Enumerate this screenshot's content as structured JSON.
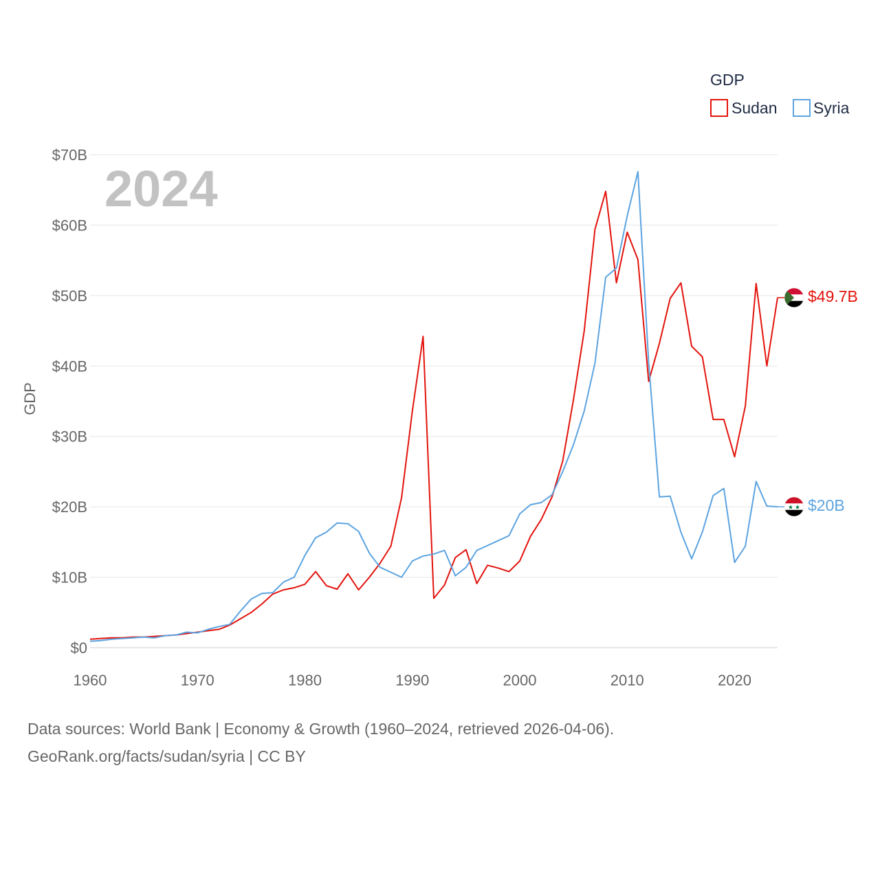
{
  "chart_data": {
    "type": "line",
    "title": "",
    "year_label": "2024",
    "xlabel": "",
    "ylabel": "GDP",
    "xlim": [
      1960,
      2024
    ],
    "ylim": [
      0,
      70
    ],
    "x_ticks": [
      1960,
      1970,
      1980,
      1990,
      2000,
      2010,
      2020
    ],
    "y_ticks": [
      {
        "value": 0,
        "label": "$0"
      },
      {
        "value": 10,
        "label": "$10B"
      },
      {
        "value": 20,
        "label": "$20B"
      },
      {
        "value": 30,
        "label": "$30B"
      },
      {
        "value": 40,
        "label": "$40B"
      },
      {
        "value": 50,
        "label": "$50B"
      },
      {
        "value": 60,
        "label": "$60B"
      },
      {
        "value": 70,
        "label": "$70B"
      }
    ],
    "legend": {
      "title": "GDP",
      "position": "top-right"
    },
    "x": [
      1960,
      1961,
      1962,
      1963,
      1964,
      1965,
      1966,
      1967,
      1968,
      1969,
      1970,
      1971,
      1972,
      1973,
      1974,
      1975,
      1976,
      1977,
      1978,
      1979,
      1980,
      1981,
      1982,
      1983,
      1984,
      1985,
      1986,
      1987,
      1988,
      1989,
      1990,
      1991,
      1992,
      1993,
      1994,
      1995,
      1996,
      1997,
      1998,
      1999,
      2000,
      2001,
      2002,
      2003,
      2004,
      2005,
      2006,
      2007,
      2008,
      2009,
      2010,
      2011,
      2012,
      2013,
      2014,
      2015,
      2016,
      2017,
      2018,
      2019,
      2020,
      2021,
      2022,
      2023,
      2024
    ],
    "series": [
      {
        "name": "Sudan",
        "color": "#e3120b",
        "end_label": "$49.7B",
        "flag": "sudan-flag",
        "values": [
          1.2,
          1.3,
          1.4,
          1.4,
          1.5,
          1.5,
          1.6,
          1.7,
          1.8,
          2.0,
          2.2,
          2.4,
          2.6,
          3.2,
          4.1,
          5.0,
          6.2,
          7.6,
          8.2,
          8.5,
          9.0,
          10.8,
          8.8,
          8.3,
          10.5,
          8.2,
          10.0,
          12.0,
          14.4,
          21.3,
          33.6,
          44.2,
          7.0,
          8.9,
          12.8,
          13.9,
          9.1,
          11.7,
          11.3,
          10.8,
          12.3,
          15.8,
          18.2,
          21.4,
          26.5,
          35.2,
          45.0,
          59.4,
          64.8,
          51.8,
          59.0,
          55.1,
          37.8,
          43.2,
          49.6,
          51.8,
          42.8,
          41.3,
          32.4,
          32.4,
          27.1,
          34.3,
          51.7,
          40.0,
          49.7
        ]
      },
      {
        "name": "Syria",
        "color": "#5ba3e0",
        "end_label": "$20B",
        "flag": "syria-flag",
        "values": [
          0.9,
          1.0,
          1.2,
          1.3,
          1.4,
          1.5,
          1.4,
          1.7,
          1.8,
          2.2,
          2.1,
          2.6,
          3.0,
          3.3,
          5.2,
          6.9,
          7.7,
          7.8,
          9.3,
          10.0,
          13.1,
          15.6,
          16.4,
          17.7,
          17.6,
          16.5,
          13.4,
          11.4,
          10.7,
          10.0,
          12.3,
          13.0,
          13.3,
          13.8,
          10.2,
          11.4,
          13.8,
          14.5,
          15.2,
          15.9,
          19.0,
          20.3,
          20.6,
          21.7,
          25.0,
          28.8,
          33.6,
          40.4,
          52.6,
          53.9,
          61.3,
          67.6,
          40.5,
          21.4,
          21.5,
          16.4,
          12.6,
          16.4,
          21.6,
          22.6,
          12.1,
          14.4,
          23.6,
          20.1,
          20.0
        ]
      }
    ]
  },
  "source": {
    "line1": "Data sources: World Bank | Economy & Growth (1960–2024, retrieved 2026-04-06).",
    "line2": "GeoRank.org/facts/sudan/syria | CC BY"
  }
}
